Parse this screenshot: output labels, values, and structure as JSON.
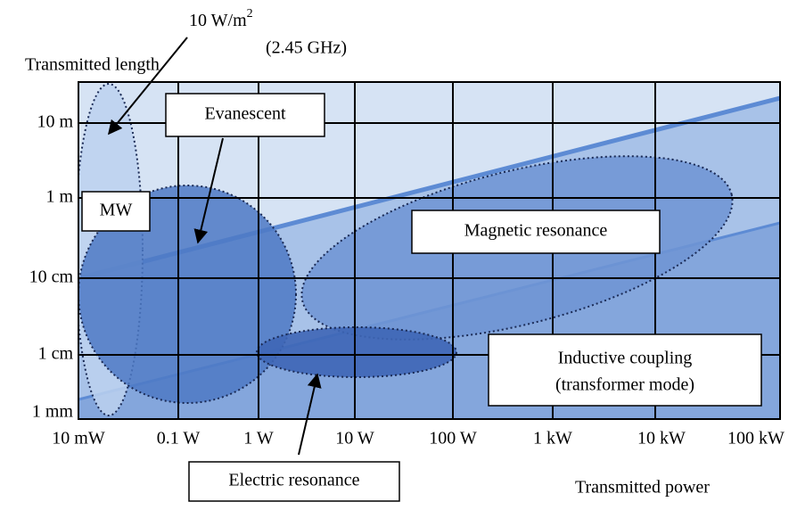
{
  "axes": {
    "y_title": "Transmitted length",
    "x_title": "Transmitted power",
    "y_labels": [
      "10 m",
      "1 m",
      "10 cm",
      "1 cm",
      "1 mm"
    ],
    "x_labels": [
      "10 mW",
      "0.1 W",
      "1 W",
      "10 W",
      "100 W",
      "1 kW",
      "10 kW",
      "100 kW"
    ]
  },
  "annotation": {
    "line1": "10 W/m",
    "superscript": "2",
    "line2": "(2.45 GHz)"
  },
  "regions": {
    "mw": "MW",
    "evanescent": "Evanescent",
    "magnetic": "Magnetic resonance",
    "inductive_line1": "Inductive coupling",
    "inductive_line2": "(transformer mode)",
    "electric": "Electric resonance"
  }
}
